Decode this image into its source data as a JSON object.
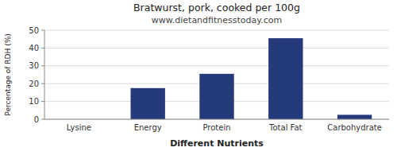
{
  "chart_data": {
    "type": "bar",
    "title": "Bratwurst, pork, cooked per 100g",
    "subtitle": "www.dietandfitnesstoday.com",
    "xlabel": "Different Nutrients",
    "ylabel": "Percentage of RDH (%)",
    "categories": [
      "Lysine",
      "Energy",
      "Protein",
      "Total Fat",
      "Carbohydrate"
    ],
    "values": [
      0,
      17.5,
      25.5,
      45.5,
      2.5
    ],
    "color": "#253a7a",
    "ylim": [
      0,
      50
    ],
    "yticks": [
      0,
      10,
      20,
      30,
      40,
      50
    ],
    "grid": true
  }
}
